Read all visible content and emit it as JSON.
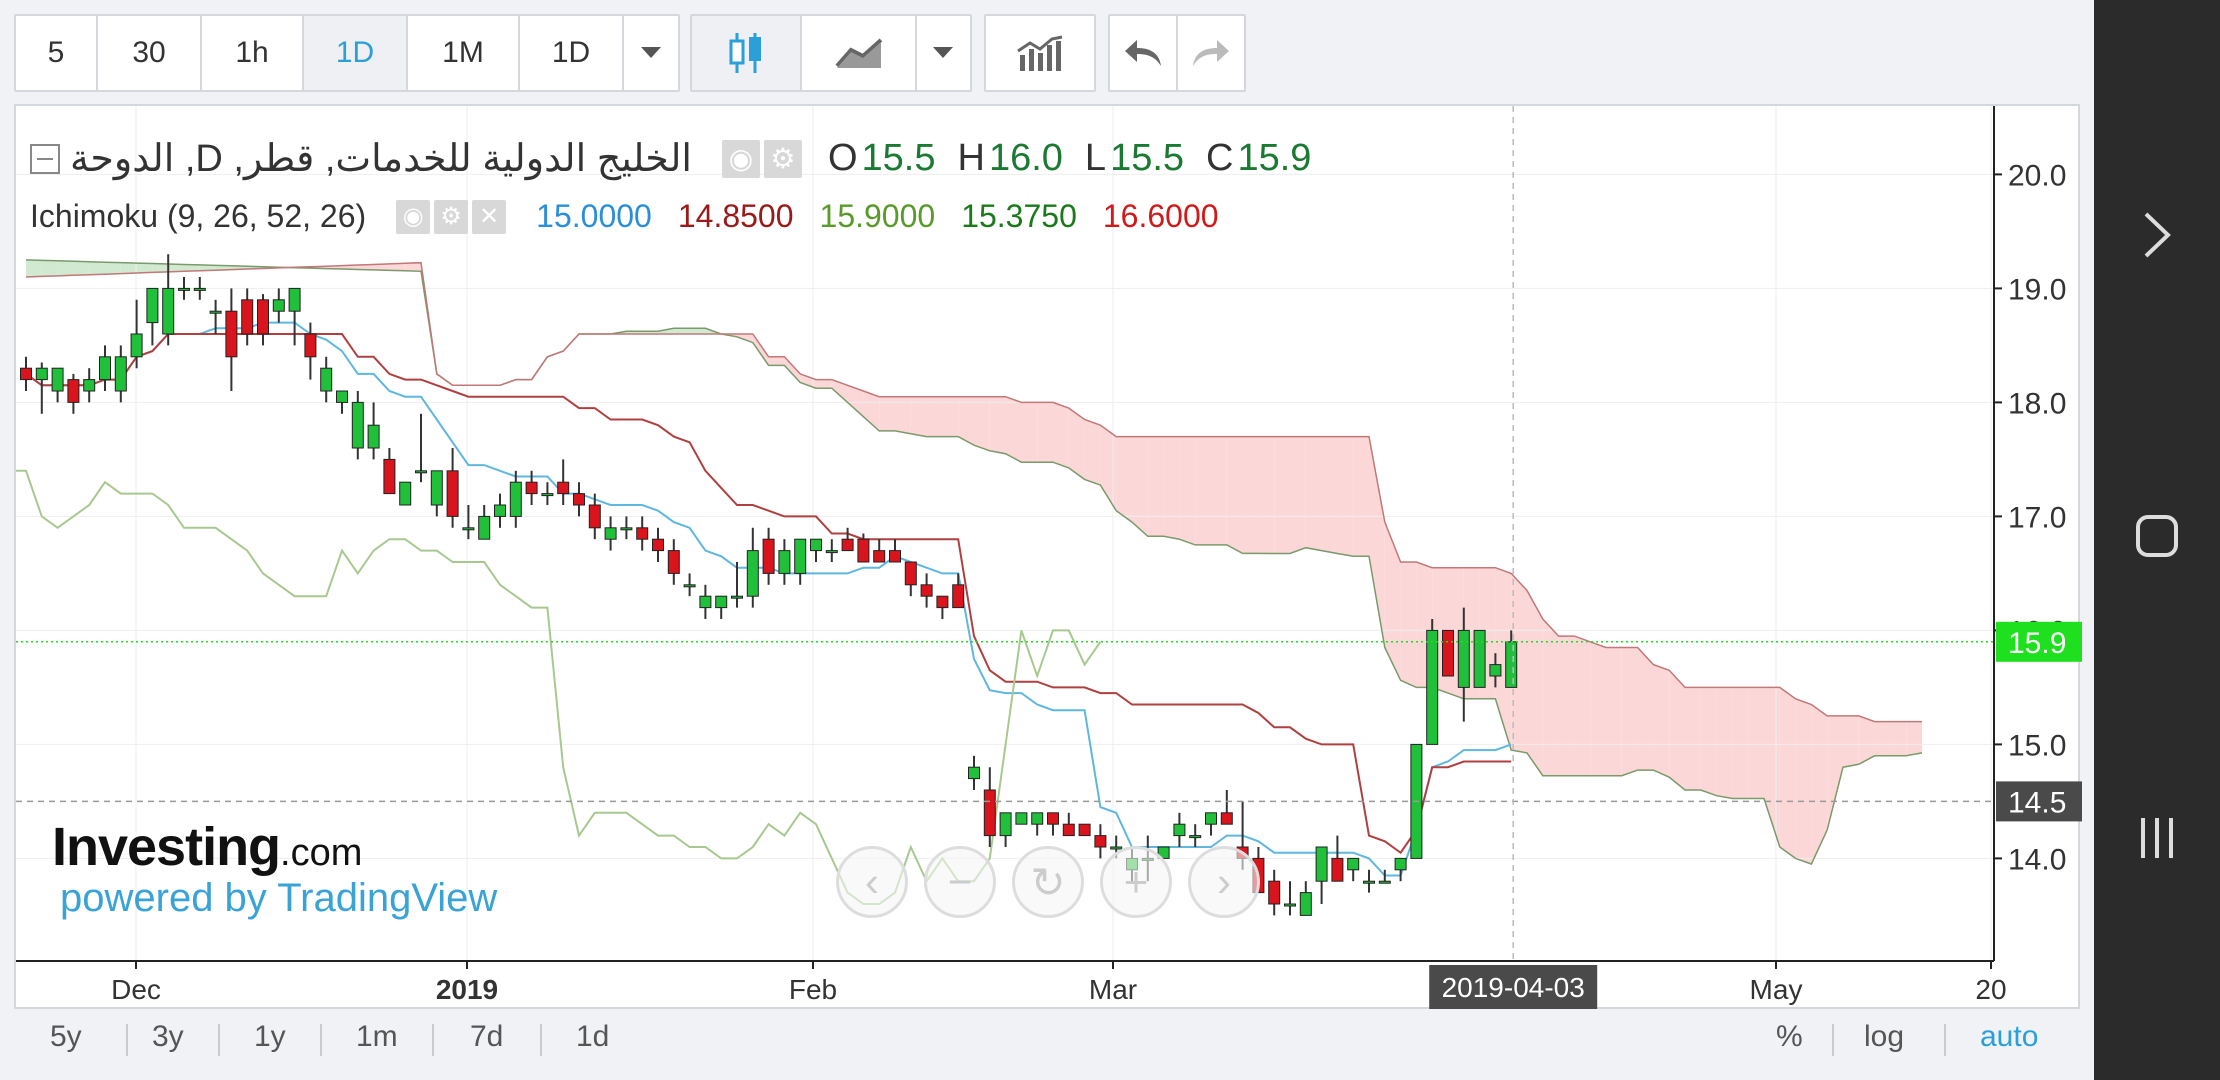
{
  "toolbar": {
    "intervals": [
      "5",
      "30",
      "1h",
      "1D",
      "1M",
      "1D"
    ],
    "active_interval": "1D",
    "icons": [
      "candles-icon",
      "line-chart-icon",
      "chevron-down-icon",
      "indicators-icon",
      "undo-icon",
      "redo-icon"
    ]
  },
  "legend": {
    "title": "الخليج الدولية للخدمات, قطر, D, الدوحة",
    "o_label": "O",
    "o_value": "15.5",
    "h_label": "H",
    "h_value": "16.0",
    "l_label": "L",
    "l_value": "15.5",
    "c_label": "C",
    "c_value": "15.9",
    "indicator_name": "Ichimoku (9, 26, 52, 26)",
    "ichimoku_values": [
      "15.0000",
      "14.8500",
      "15.9000",
      "15.3750",
      "16.6000"
    ]
  },
  "price_axis": {
    "ticks": [
      "20.0",
      "19.0",
      "18.0",
      "17.0",
      "16.0",
      "15.0",
      "14.0"
    ],
    "last_price_label": "15.9",
    "crosshair_price_label": "14.5"
  },
  "time_axis": {
    "ticks": [
      "Dec",
      "2019",
      "Feb",
      "Mar",
      "May",
      "20"
    ],
    "crosshair_date_label": "2019-04-03"
  },
  "watermark": {
    "logo": "Investing",
    "logo_suffix": ".com",
    "powered_by": "powered by TradingView"
  },
  "navigation": {
    "icons": [
      "scroll-left-icon",
      "zoom-out-icon",
      "reset-icon",
      "zoom-in-icon",
      "scroll-right-icon"
    ]
  },
  "range_bar": {
    "ranges": [
      "5y",
      "3y",
      "1y",
      "1m",
      "7d",
      "1d"
    ],
    "options": [
      "%",
      "log",
      "auto"
    ]
  },
  "colors": {
    "up": "#21c03a",
    "down": "#d9141c",
    "tenkan": "#5fb7e0",
    "kijun": "#b04040",
    "chikou": "#a8c890",
    "span_a": "#7a9a6a",
    "span_b": "#c07878",
    "cloud_bear": "#fcd5d5",
    "cloud_bull": "#cfe8cf",
    "last_price": "#1ee01e",
    "accent": "#2a9fd8"
  },
  "chart_data": {
    "type": "candlestick",
    "symbol": "الخليج الدولية للخدمات, قطر",
    "interval": "D",
    "ylim": [
      13.1,
      20.6
    ],
    "x_ticks": [
      "Dec",
      "2019",
      "Feb",
      "Mar",
      "May",
      "20"
    ],
    "candles": [
      {
        "o": 18.3,
        "h": 18.4,
        "l": 18.1,
        "c": 18.2
      },
      {
        "o": 18.2,
        "h": 18.35,
        "l": 17.9,
        "c": 18.3
      },
      {
        "o": 18.1,
        "h": 18.3,
        "l": 18.0,
        "c": 18.3
      },
      {
        "o": 18.2,
        "h": 18.25,
        "l": 17.9,
        "c": 18.0
      },
      {
        "o": 18.1,
        "h": 18.3,
        "l": 18.0,
        "c": 18.2
      },
      {
        "o": 18.2,
        "h": 18.5,
        "l": 18.1,
        "c": 18.4
      },
      {
        "o": 18.1,
        "h": 18.5,
        "l": 18.0,
        "c": 18.4
      },
      {
        "o": 18.4,
        "h": 18.9,
        "l": 18.3,
        "c": 18.6
      },
      {
        "o": 18.7,
        "h": 19.0,
        "l": 18.5,
        "c": 19.0
      },
      {
        "o": 18.6,
        "h": 19.3,
        "l": 18.5,
        "c": 19.0
      },
      {
        "o": 19.0,
        "h": 19.1,
        "l": 18.9,
        "c": 19.0
      },
      {
        "o": 19.0,
        "h": 19.1,
        "l": 18.9,
        "c": 19.0
      },
      {
        "o": 18.8,
        "h": 18.9,
        "l": 18.6,
        "c": 18.8
      },
      {
        "o": 18.8,
        "h": 19.0,
        "l": 18.1,
        "c": 18.4
      },
      {
        "o": 18.9,
        "h": 19.0,
        "l": 18.5,
        "c": 18.6
      },
      {
        "o": 18.9,
        "h": 18.95,
        "l": 18.5,
        "c": 18.6
      },
      {
        "o": 18.8,
        "h": 19.0,
        "l": 18.7,
        "c": 18.9
      },
      {
        "o": 18.8,
        "h": 19.0,
        "l": 18.5,
        "c": 19.0
      },
      {
        "o": 18.6,
        "h": 18.7,
        "l": 18.2,
        "c": 18.4
      },
      {
        "o": 18.1,
        "h": 18.4,
        "l": 18.0,
        "c": 18.3
      },
      {
        "o": 18.0,
        "h": 18.1,
        "l": 17.9,
        "c": 18.1
      },
      {
        "o": 17.6,
        "h": 18.1,
        "l": 17.5,
        "c": 18.0
      },
      {
        "o": 17.6,
        "h": 18.0,
        "l": 17.5,
        "c": 17.8
      },
      {
        "o": 17.5,
        "h": 17.6,
        "l": 17.2,
        "c": 17.2
      },
      {
        "o": 17.1,
        "h": 17.3,
        "l": 17.1,
        "c": 17.3
      },
      {
        "o": 17.4,
        "h": 17.9,
        "l": 17.3,
        "c": 17.4
      },
      {
        "o": 17.1,
        "h": 17.4,
        "l": 17.0,
        "c": 17.4
      },
      {
        "o": 17.4,
        "h": 17.6,
        "l": 16.9,
        "c": 17.0
      },
      {
        "o": 16.9,
        "h": 17.1,
        "l": 16.8,
        "c": 16.9
      },
      {
        "o": 16.8,
        "h": 17.1,
        "l": 16.8,
        "c": 17.0
      },
      {
        "o": 17.0,
        "h": 17.2,
        "l": 16.9,
        "c": 17.1
      },
      {
        "o": 17.0,
        "h": 17.4,
        "l": 16.9,
        "c": 17.3
      },
      {
        "o": 17.3,
        "h": 17.4,
        "l": 17.1,
        "c": 17.2
      },
      {
        "o": 17.2,
        "h": 17.3,
        "l": 17.1,
        "c": 17.2
      },
      {
        "o": 17.3,
        "h": 17.5,
        "l": 17.1,
        "c": 17.2
      },
      {
        "o": 17.2,
        "h": 17.3,
        "l": 17.0,
        "c": 17.1
      },
      {
        "o": 17.1,
        "h": 17.2,
        "l": 16.8,
        "c": 16.9
      },
      {
        "o": 16.8,
        "h": 17.0,
        "l": 16.7,
        "c": 16.9
      },
      {
        "o": 16.9,
        "h": 17.0,
        "l": 16.8,
        "c": 16.9
      },
      {
        "o": 16.9,
        "h": 17.0,
        "l": 16.7,
        "c": 16.8
      },
      {
        "o": 16.8,
        "h": 16.9,
        "l": 16.6,
        "c": 16.7
      },
      {
        "o": 16.7,
        "h": 16.8,
        "l": 16.4,
        "c": 16.5
      },
      {
        "o": 16.4,
        "h": 16.5,
        "l": 16.3,
        "c": 16.4
      },
      {
        "o": 16.2,
        "h": 16.4,
        "l": 16.1,
        "c": 16.3
      },
      {
        "o": 16.2,
        "h": 16.3,
        "l": 16.1,
        "c": 16.3
      },
      {
        "o": 16.3,
        "h": 16.6,
        "l": 16.2,
        "c": 16.3
      },
      {
        "o": 16.3,
        "h": 16.9,
        "l": 16.2,
        "c": 16.7
      },
      {
        "o": 16.8,
        "h": 16.9,
        "l": 16.4,
        "c": 16.5
      },
      {
        "o": 16.5,
        "h": 16.8,
        "l": 16.4,
        "c": 16.7
      },
      {
        "o": 16.5,
        "h": 16.8,
        "l": 16.4,
        "c": 16.8
      },
      {
        "o": 16.7,
        "h": 16.8,
        "l": 16.6,
        "c": 16.8
      },
      {
        "o": 16.7,
        "h": 16.8,
        "l": 16.6,
        "c": 16.7
      },
      {
        "o": 16.8,
        "h": 16.9,
        "l": 16.7,
        "c": 16.7
      },
      {
        "o": 16.8,
        "h": 16.85,
        "l": 16.6,
        "c": 16.6
      },
      {
        "o": 16.7,
        "h": 16.8,
        "l": 16.6,
        "c": 16.6
      },
      {
        "o": 16.7,
        "h": 16.8,
        "l": 16.6,
        "c": 16.6
      },
      {
        "o": 16.6,
        "h": 16.6,
        "l": 16.3,
        "c": 16.4
      },
      {
        "o": 16.4,
        "h": 16.5,
        "l": 16.2,
        "c": 16.3
      },
      {
        "o": 16.3,
        "h": 16.3,
        "l": 16.1,
        "c": 16.2
      },
      {
        "o": 16.4,
        "h": 16.5,
        "l": 16.2,
        "c": 16.2
      },
      {
        "o": 14.7,
        "h": 14.9,
        "l": 14.6,
        "c": 14.8
      },
      {
        "o": 14.6,
        "h": 14.8,
        "l": 14.1,
        "c": 14.2
      },
      {
        "o": 14.2,
        "h": 14.4,
        "l": 14.1,
        "c": 14.4
      },
      {
        "o": 14.3,
        "h": 14.4,
        "l": 14.3,
        "c": 14.4
      },
      {
        "o": 14.3,
        "h": 14.4,
        "l": 14.2,
        "c": 14.4
      },
      {
        "o": 14.4,
        "h": 14.4,
        "l": 14.2,
        "c": 14.3
      },
      {
        "o": 14.3,
        "h": 14.4,
        "l": 14.2,
        "c": 14.2
      },
      {
        "o": 14.3,
        "h": 14.3,
        "l": 14.2,
        "c": 14.2
      },
      {
        "o": 14.2,
        "h": 14.3,
        "l": 14.0,
        "c": 14.1
      },
      {
        "o": 14.1,
        "h": 14.2,
        "l": 14.0,
        "c": 14.1
      },
      {
        "o": 13.9,
        "h": 14.1,
        "l": 13.8,
        "c": 14.0
      },
      {
        "o": 14.0,
        "h": 14.2,
        "l": 13.8,
        "c": 14.0
      },
      {
        "o": 14.0,
        "h": 14.1,
        "l": 14.0,
        "c": 14.1
      },
      {
        "o": 14.2,
        "h": 14.4,
        "l": 14.1,
        "c": 14.3
      },
      {
        "o": 14.2,
        "h": 14.3,
        "l": 14.1,
        "c": 14.2
      },
      {
        "o": 14.3,
        "h": 14.4,
        "l": 14.2,
        "c": 14.4
      },
      {
        "o": 14.4,
        "h": 14.6,
        "l": 14.3,
        "c": 14.3
      },
      {
        "o": 14.1,
        "h": 14.5,
        "l": 13.9,
        "c": 14.0
      },
      {
        "o": 14.0,
        "h": 14.1,
        "l": 13.7,
        "c": 13.7
      },
      {
        "o": 13.8,
        "h": 13.9,
        "l": 13.5,
        "c": 13.6
      },
      {
        "o": 13.6,
        "h": 13.8,
        "l": 13.5,
        "c": 13.6
      },
      {
        "o": 13.5,
        "h": 13.8,
        "l": 13.5,
        "c": 13.7
      },
      {
        "o": 13.8,
        "h": 14.1,
        "l": 13.6,
        "c": 14.1
      },
      {
        "o": 14.0,
        "h": 14.2,
        "l": 13.8,
        "c": 13.8
      },
      {
        "o": 13.9,
        "h": 14.0,
        "l": 13.8,
        "c": 14.0
      },
      {
        "o": 13.8,
        "h": 13.9,
        "l": 13.7,
        "c": 13.8
      },
      {
        "o": 13.8,
        "h": 13.9,
        "l": 13.8,
        "c": 13.8
      },
      {
        "o": 13.9,
        "h": 14.0,
        "l": 13.8,
        "c": 14.0
      },
      {
        "o": 14.0,
        "h": 15.0,
        "l": 14.0,
        "c": 15.0
      },
      {
        "o": 15.0,
        "h": 16.1,
        "l": 15.0,
        "c": 16.0
      },
      {
        "o": 16.0,
        "h": 16.0,
        "l": 15.6,
        "c": 15.6
      },
      {
        "o": 15.5,
        "h": 16.2,
        "l": 15.2,
        "c": 16.0
      },
      {
        "o": 15.5,
        "h": 16.0,
        "l": 15.5,
        "c": 16.0
      },
      {
        "o": 15.6,
        "h": 15.8,
        "l": 15.5,
        "c": 15.7
      },
      {
        "o": 15.5,
        "h": 16.0,
        "l": 15.5,
        "c": 15.9
      }
    ],
    "last_price": 15.9,
    "crosshair_price": 14.5,
    "crosshair_date": "2019-04-03"
  }
}
